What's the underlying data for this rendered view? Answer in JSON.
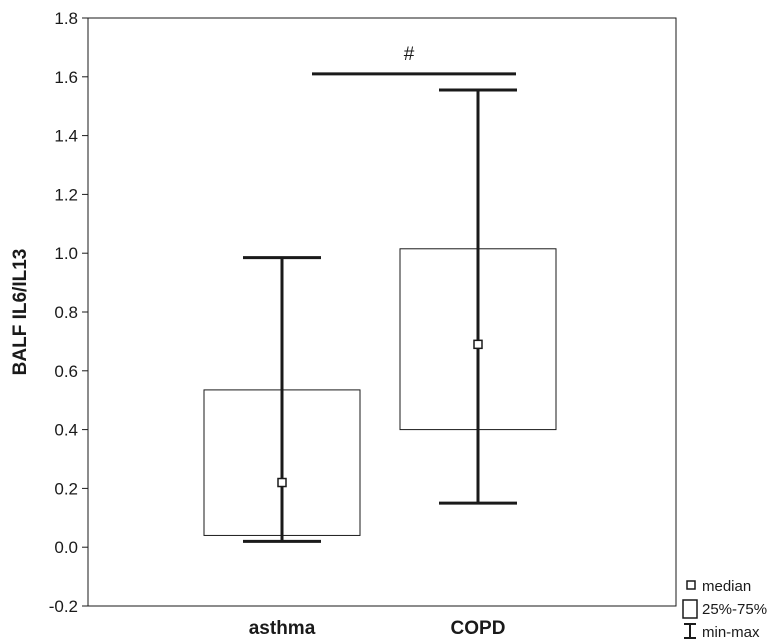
{
  "chart_data": {
    "type": "box",
    "ylabel": "BALF IL6/IL13",
    "ylim": [
      -0.2,
      1.8
    ],
    "yticks": [
      "-0.2",
      "0.0",
      "0.2",
      "0.4",
      "0.6",
      "0.8",
      "1.0",
      "1.2",
      "1.4",
      "1.6",
      "1.8"
    ],
    "ytick_values": [
      -0.2,
      0.0,
      0.2,
      0.4,
      0.6,
      0.8,
      1.0,
      1.2,
      1.4,
      1.6,
      1.8
    ],
    "categories": [
      "asthma",
      "COPD"
    ],
    "groups": [
      {
        "category": "asthma",
        "min": 0.02,
        "q1": 0.04,
        "median": 0.22,
        "q3": 0.535,
        "max": 0.985
      },
      {
        "category": "COPD",
        "min": 0.15,
        "q1": 0.4,
        "median": 0.69,
        "q3": 1.015,
        "max": 1.555
      }
    ],
    "annotation": {
      "text": "#",
      "y": 1.61
    },
    "legend": {
      "placement": "bottom-right",
      "items": [
        {
          "label": "median",
          "icon": "small-square-icon"
        },
        {
          "label": "25%-75%",
          "icon": "box-icon"
        },
        {
          "label": "min-max",
          "icon": "whisker-icon"
        }
      ]
    },
    "grid": false
  },
  "colors": {
    "line": "#1a1a1a",
    "background": "#ffffff"
  }
}
